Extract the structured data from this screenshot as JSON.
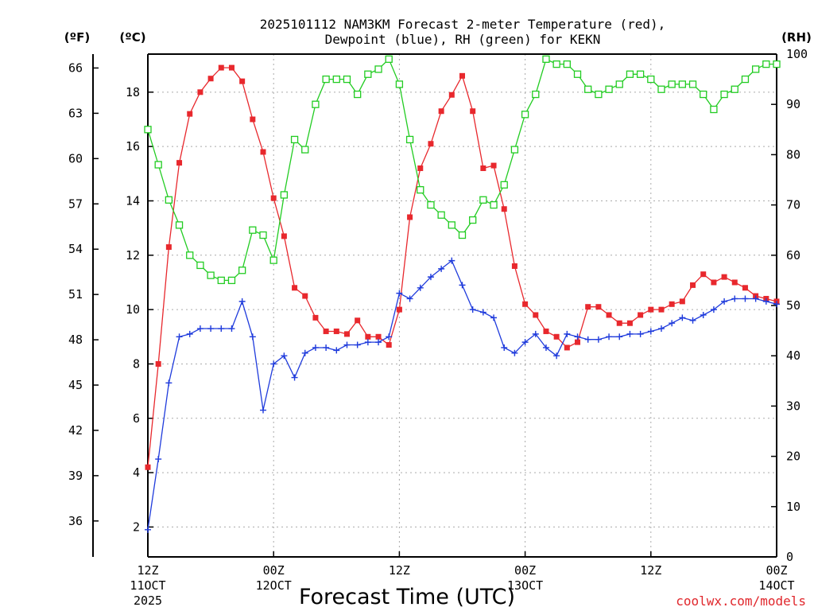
{
  "chart_data": {
    "type": "line",
    "title_line1": "2025101112 NAM3KM Forecast 2-meter Temperature (red),",
    "title_line2": "Dewpoint (blue), RH (green) for KEKN",
    "xlabel": "Forecast Time (UTC)",
    "credit": "coolwx.com/models",
    "left_outer_label": "(ºF)",
    "left_inner_label": "(ºC)",
    "right_label": "(RH)",
    "ylim_c": [
      0.9,
      19.4
    ],
    "ylim_rh": [
      0,
      100
    ],
    "yticks_c": [
      "2",
      "4",
      "6",
      "8",
      "10",
      "12",
      "14",
      "16",
      "18"
    ],
    "yticks_f": [
      "36",
      "39",
      "42",
      "45",
      "48",
      "51",
      "54",
      "57",
      "60",
      "63",
      "66"
    ],
    "yticks_rh": [
      "0",
      "10",
      "20",
      "30",
      "40",
      "50",
      "60",
      "70",
      "80",
      "90",
      "100"
    ],
    "xlim_hours": [
      0,
      60
    ],
    "xticks": [
      {
        "hour": 0,
        "l1": "12Z",
        "l2": "11OCT",
        "l3": "2025"
      },
      {
        "hour": 12,
        "l1": "00Z",
        "l2": "12OCT",
        "l3": ""
      },
      {
        "hour": 24,
        "l1": "12Z",
        "l2": "",
        "l3": ""
      },
      {
        "hour": 36,
        "l1": "00Z",
        "l2": "13OCT",
        "l3": ""
      },
      {
        "hour": 48,
        "l1": "12Z",
        "l2": "",
        "l3": ""
      },
      {
        "hour": 60,
        "l1": "00Z",
        "l2": "14OCT",
        "l3": ""
      }
    ],
    "x_hours": [
      0,
      1,
      2,
      3,
      4,
      5,
      6,
      7,
      8,
      9,
      10,
      11,
      12,
      13,
      14,
      15,
      16,
      17,
      18,
      19,
      20,
      21,
      22,
      23,
      24,
      25,
      26,
      27,
      28,
      29,
      30,
      31,
      32,
      33,
      34,
      35,
      36,
      37,
      38,
      39,
      40,
      41,
      42,
      43,
      44,
      45,
      46,
      47,
      48,
      49,
      50,
      51,
      52,
      53,
      54,
      55,
      56,
      57,
      58,
      59,
      60
    ],
    "series": [
      {
        "key": "temperature_c",
        "color": "#e8282d",
        "marker": "filled-square",
        "values": [
          4.2,
          8.0,
          12.3,
          15.4,
          17.2,
          18.0,
          18.5,
          18.9,
          18.9,
          18.4,
          17.0,
          15.8,
          14.1,
          12.7,
          10.8,
          10.5,
          9.7,
          9.2,
          9.2,
          9.1,
          9.6,
          9.0,
          9.0,
          8.7,
          10.0,
          13.4,
          15.2,
          16.1,
          17.3,
          17.9,
          18.6,
          17.3,
          15.2,
          15.3,
          13.7,
          11.6,
          10.2,
          9.8,
          9.2,
          9.0,
          8.6,
          8.8,
          10.1,
          10.1,
          9.8,
          9.5,
          9.5,
          9.8,
          10.0,
          10.0,
          10.2,
          10.3,
          10.9,
          11.3,
          11.0,
          11.2,
          11.0,
          10.8,
          10.5,
          10.4,
          10.3
        ]
      },
      {
        "key": "dewpoint_c",
        "color": "#1f3bdc",
        "marker": "plus",
        "values": [
          1.9,
          4.5,
          7.3,
          9.0,
          9.1,
          9.3,
          9.3,
          9.3,
          9.3,
          10.3,
          9.0,
          6.3,
          8.0,
          8.3,
          7.5,
          8.4,
          8.6,
          8.6,
          8.5,
          8.7,
          8.7,
          8.8,
          8.8,
          9.0,
          10.6,
          10.4,
          10.8,
          11.2,
          11.5,
          11.8,
          10.9,
          10.0,
          9.9,
          9.7,
          8.6,
          8.4,
          8.8,
          9.1,
          8.6,
          8.3,
          9.1,
          9.0,
          8.9,
          8.9,
          9.0,
          9.0,
          9.1,
          9.1,
          9.2,
          9.3,
          9.5,
          9.7,
          9.6,
          9.8,
          10.0,
          10.3,
          10.4,
          10.4,
          10.4,
          10.3,
          10.2
        ]
      },
      {
        "key": "rh_percent",
        "color": "#22cc22",
        "marker": "open-square",
        "values": [
          85,
          78,
          71,
          66,
          60,
          58,
          56,
          55,
          55,
          57,
          65,
          64,
          59,
          72,
          83,
          81,
          90,
          95,
          95,
          95,
          92,
          96,
          97,
          99,
          94,
          83,
          73,
          70,
          68,
          66,
          64,
          67,
          71,
          70,
          74,
          81,
          88,
          92,
          99,
          98,
          98,
          96,
          93,
          92,
          93,
          94,
          96,
          96,
          95,
          93,
          94,
          94,
          94,
          92,
          89,
          92,
          93,
          95,
          97,
          98,
          98
        ]
      }
    ],
    "grid": true,
    "legend": "in title"
  }
}
